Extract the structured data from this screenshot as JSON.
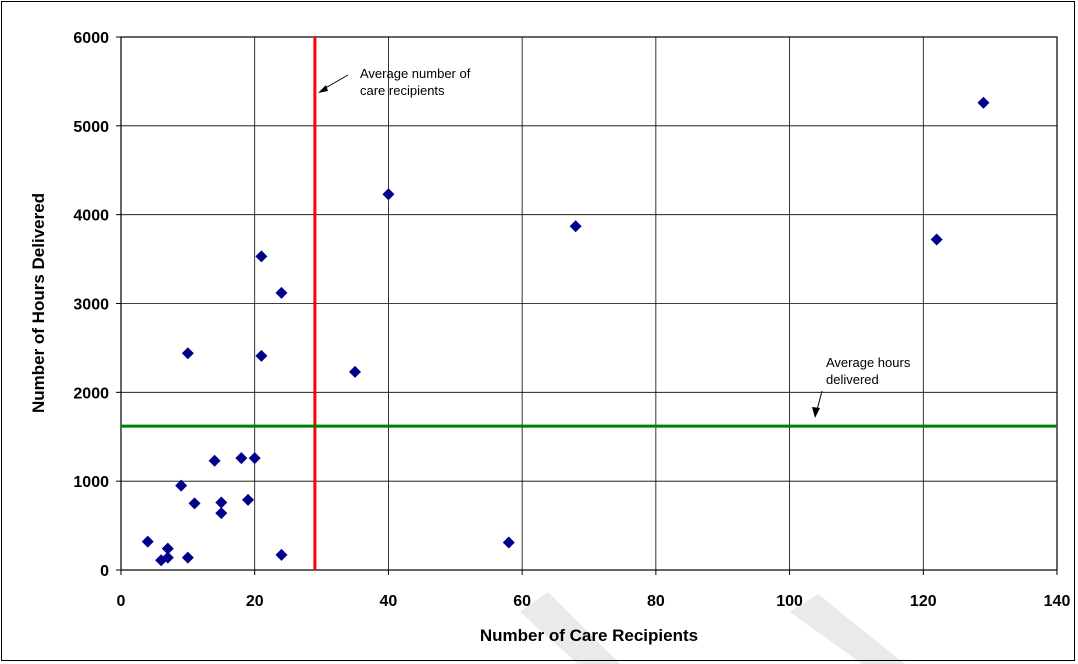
{
  "chart_data": {
    "type": "scatter",
    "xlabel": "Number of Care Recipients",
    "ylabel": "Number of Hours Delivered",
    "xlim": [
      0,
      140
    ],
    "ylim": [
      0,
      6000
    ],
    "x_ticks": [
      0,
      20,
      40,
      60,
      80,
      100,
      120,
      140
    ],
    "y_ticks": [
      0,
      1000,
      2000,
      3000,
      4000,
      5000,
      6000
    ],
    "grid": true,
    "marker": "diamond",
    "marker_color": "#00008B",
    "points": [
      {
        "x": 4,
        "y": 320
      },
      {
        "x": 6,
        "y": 110
      },
      {
        "x": 7,
        "y": 140
      },
      {
        "x": 7,
        "y": 240
      },
      {
        "x": 9,
        "y": 950
      },
      {
        "x": 10,
        "y": 2440
      },
      {
        "x": 10,
        "y": 140
      },
      {
        "x": 11,
        "y": 750
      },
      {
        "x": 14,
        "y": 1230
      },
      {
        "x": 15,
        "y": 760
      },
      {
        "x": 15,
        "y": 640
      },
      {
        "x": 18,
        "y": 1260
      },
      {
        "x": 19,
        "y": 790
      },
      {
        "x": 20,
        "y": 1260
      },
      {
        "x": 21,
        "y": 3530
      },
      {
        "x": 21,
        "y": 2410
      },
      {
        "x": 24,
        "y": 3120
      },
      {
        "x": 24,
        "y": 170
      },
      {
        "x": 35,
        "y": 2230
      },
      {
        "x": 40,
        "y": 4230
      },
      {
        "x": 58,
        "y": 310
      },
      {
        "x": 68,
        "y": 3870
      },
      {
        "x": 122,
        "y": 3720
      },
      {
        "x": 129,
        "y": 5260
      }
    ],
    "reference_lines": [
      {
        "orientation": "vertical",
        "value": 29,
        "color": "#FF0000"
      },
      {
        "orientation": "horizontal",
        "value": 1620,
        "color": "#008000"
      }
    ],
    "annotations": [
      {
        "text_lines": [
          "Average number of",
          "care recipients"
        ]
      },
      {
        "text_lines": [
          "Average hours",
          "delivered"
        ]
      }
    ]
  }
}
